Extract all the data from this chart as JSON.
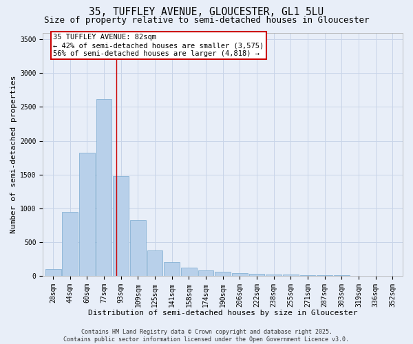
{
  "title1": "35, TUFFLEY AVENUE, GLOUCESTER, GL1 5LU",
  "title2": "Size of property relative to semi-detached houses in Gloucester",
  "xlabel": "Distribution of semi-detached houses by size in Gloucester",
  "ylabel": "Number of semi-detached properties",
  "bin_labels": [
    "28sqm",
    "44sqm",
    "60sqm",
    "77sqm",
    "93sqm",
    "109sqm",
    "125sqm",
    "141sqm",
    "158sqm",
    "174sqm",
    "190sqm",
    "206sqm",
    "222sqm",
    "238sqm",
    "255sqm",
    "271sqm",
    "287sqm",
    "303sqm",
    "319sqm",
    "336sqm",
    "352sqm"
  ],
  "bar_heights": [
    100,
    950,
    1820,
    2620,
    1480,
    820,
    380,
    200,
    120,
    80,
    60,
    40,
    30,
    20,
    15,
    10,
    8,
    5,
    3,
    2,
    1
  ],
  "bar_color": "#b8d0ea",
  "bar_edge_color": "#7aaad0",
  "grid_color": "#c8d4e8",
  "background_color": "#e8eef8",
  "red_line_x": 3.72,
  "annotation_box_text": "35 TUFFLEY AVENUE: 82sqm\n← 42% of semi-detached houses are smaller (3,575)\n56% of semi-detached houses are larger (4,818) →",
  "annotation_box_color": "#ffffff",
  "annotation_box_edge_color": "#cc0000",
  "ylim": [
    0,
    3600
  ],
  "yticks": [
    0,
    500,
    1000,
    1500,
    2000,
    2500,
    3000,
    3500
  ],
  "footer_text": "Contains HM Land Registry data © Crown copyright and database right 2025.\nContains public sector information licensed under the Open Government Licence v3.0.",
  "title1_fontsize": 10.5,
  "title2_fontsize": 9,
  "xlabel_fontsize": 8,
  "ylabel_fontsize": 8,
  "tick_fontsize": 7,
  "annotation_fontsize": 7.5,
  "footer_fontsize": 6
}
